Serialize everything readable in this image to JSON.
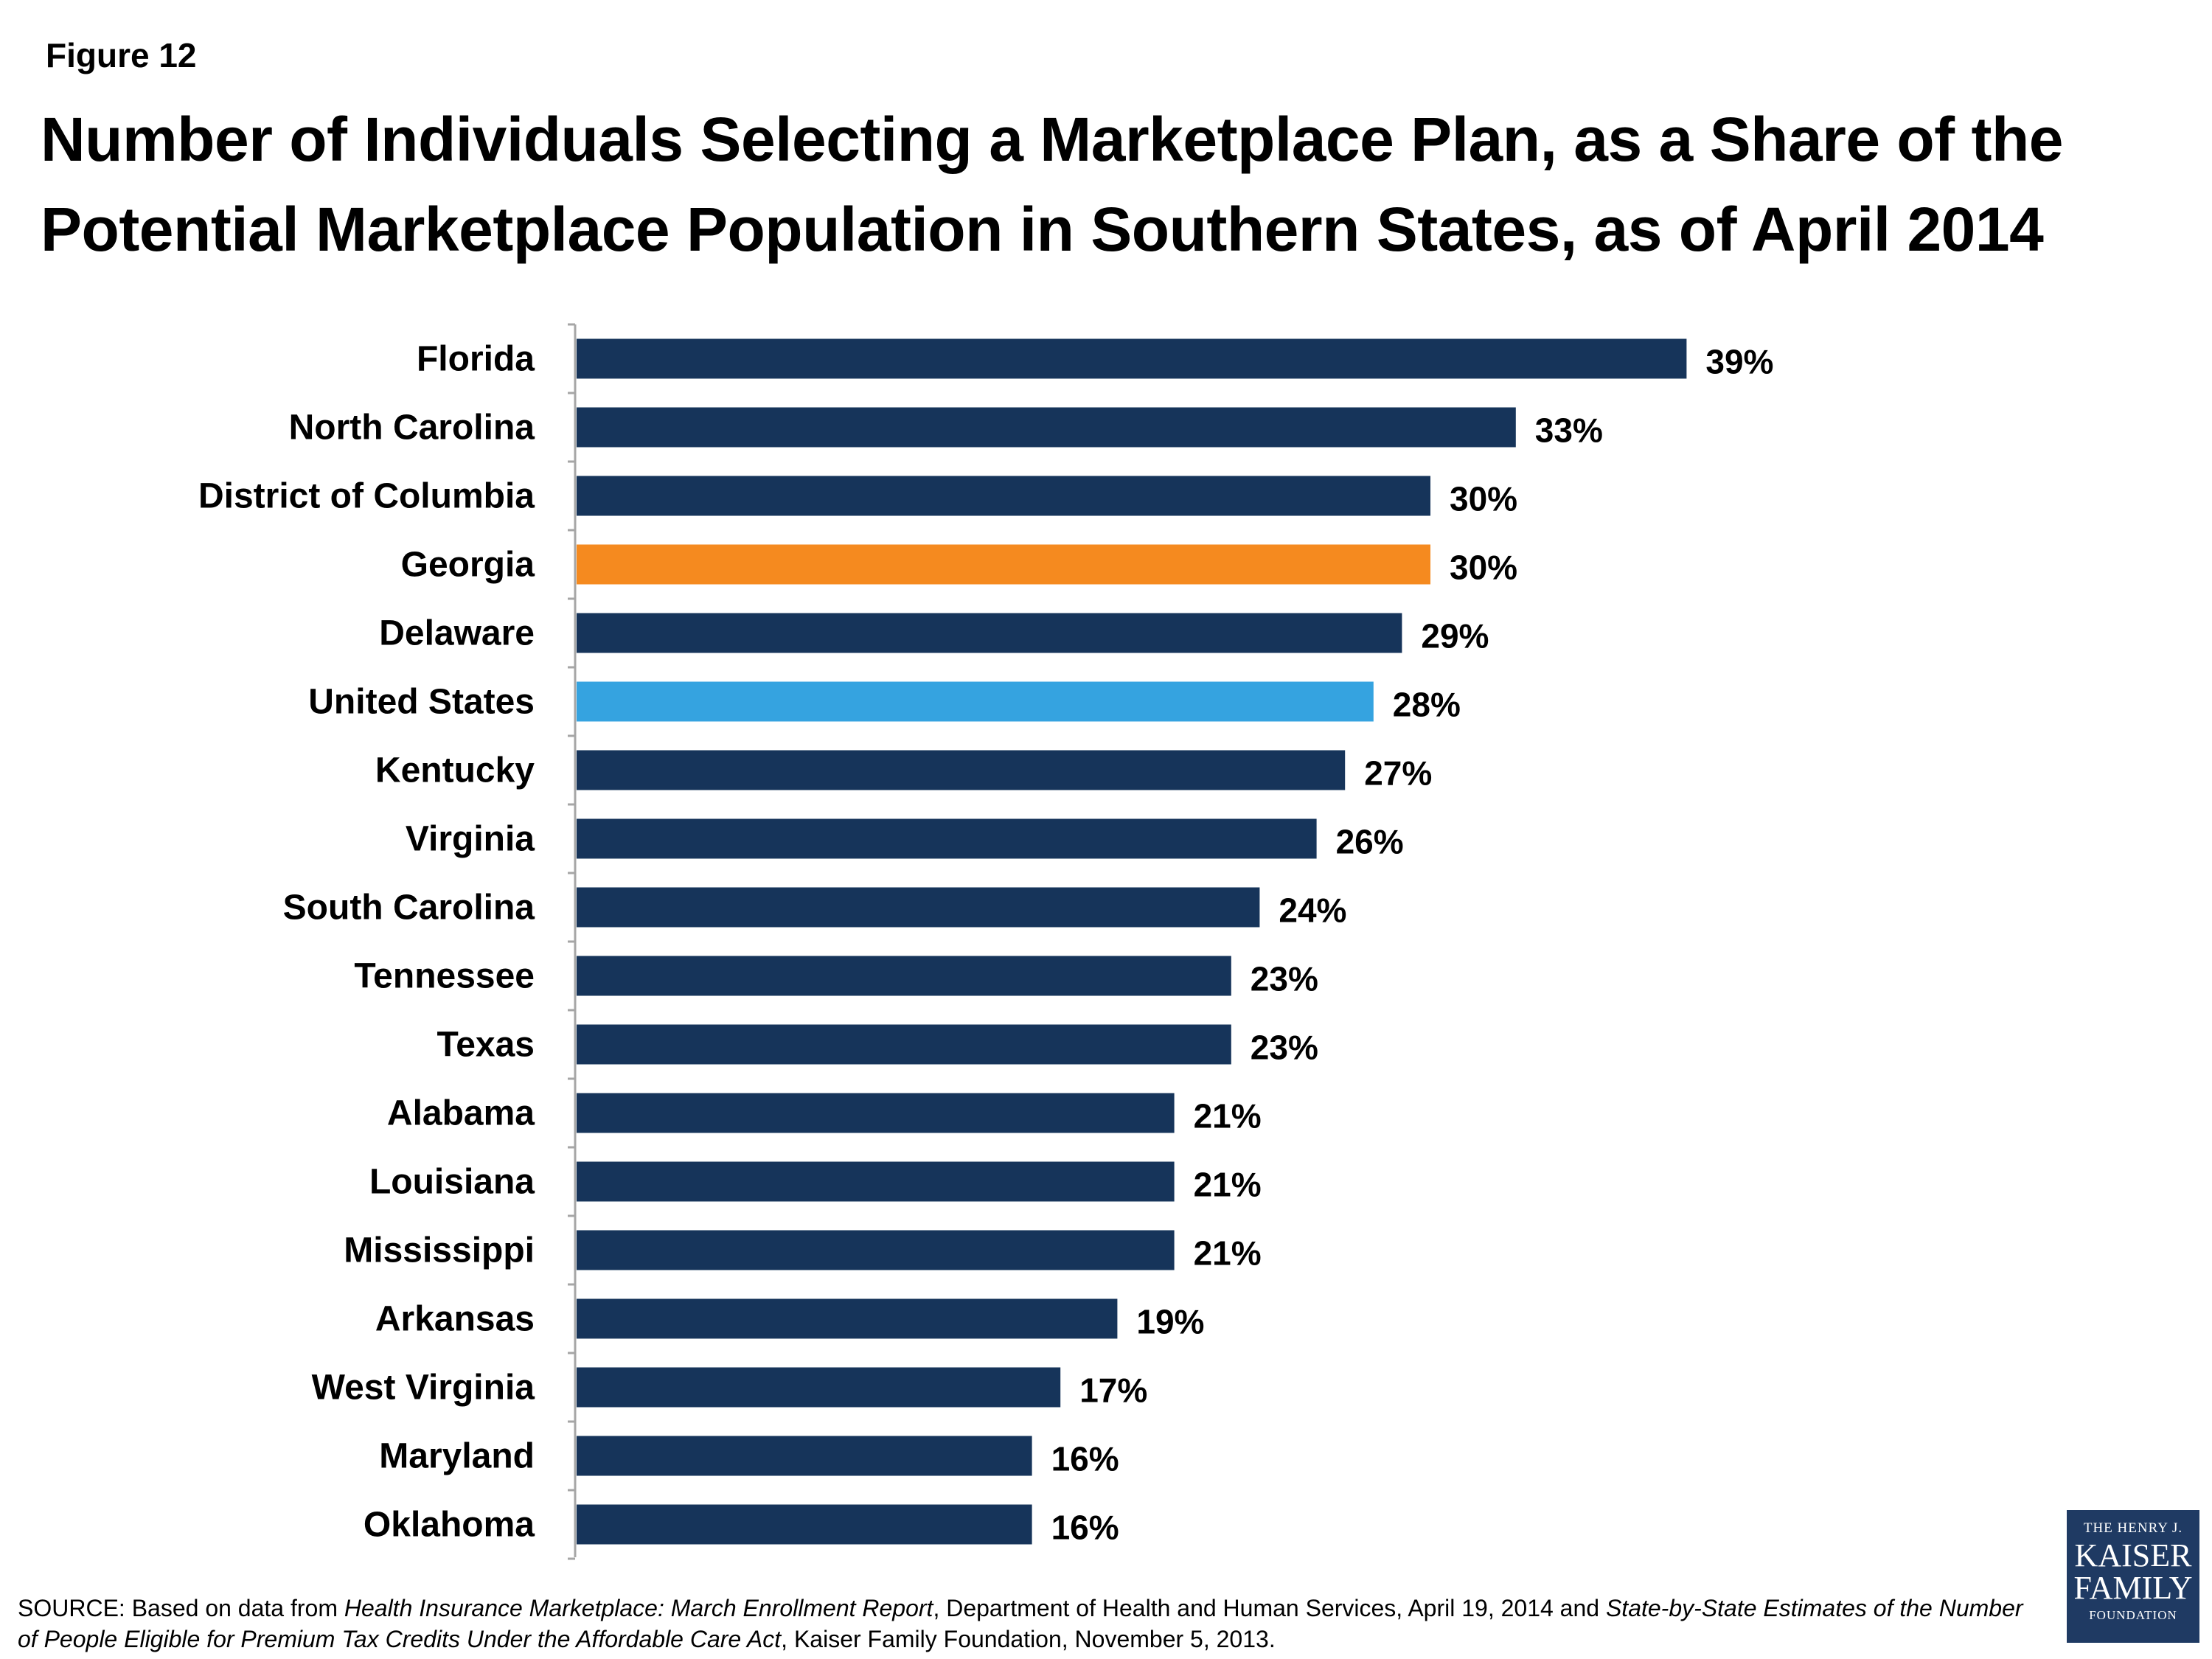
{
  "figure_label": "Figure 12",
  "title": "Number of Individuals Selecting a Marketplace Plan, as a Share of the Potential Marketplace Population in Southern States, as of April 2014",
  "source": {
    "prefix": "SOURCE: Based on data from ",
    "title1": "Health Insurance Marketplace: March Enrollment Report",
    "middle": ", Department of Health and Human Services, April 19, 2014 and ",
    "title2": "State-by-State Estimates of the Number of People Eligible for Premium Tax Credits Under the Affordable Care Act",
    "suffix": ", Kaiser Family Foundation, November 5, 2013."
  },
  "logo": {
    "line1": "THE HENRY J.",
    "line2": "KAISER",
    "line3": "FAMILY",
    "line4": "FOUNDATION"
  },
  "colors": {
    "default_bar": "#16345a",
    "highlight_georgia": "#f58a1f",
    "highlight_us": "#35a3e0",
    "axis": "#a6a6a6"
  },
  "chart_data": {
    "type": "bar",
    "orientation": "horizontal",
    "value_format": "percent",
    "categories": [
      "Florida",
      "North Carolina",
      "District of Columbia",
      "Georgia",
      "Delaware",
      "United States",
      "Kentucky",
      "Virginia",
      "South Carolina",
      "Tennessee",
      "Texas",
      "Alabama",
      "Louisiana",
      "Mississippi",
      "Arkansas",
      "West Virginia",
      "Maryland",
      "Oklahoma"
    ],
    "values": [
      39,
      33,
      30,
      30,
      29,
      28,
      27,
      26,
      24,
      23,
      23,
      21,
      21,
      21,
      19,
      17,
      16,
      16
    ],
    "value_labels": [
      "39%",
      "33%",
      "30%",
      "30%",
      "29%",
      "28%",
      "27%",
      "26%",
      "24%",
      "23%",
      "23%",
      "21%",
      "21%",
      "21%",
      "19%",
      "17%",
      "16%",
      "16%"
    ],
    "bar_colors": [
      "#16345a",
      "#16345a",
      "#16345a",
      "#f58a1f",
      "#16345a",
      "#35a3e0",
      "#16345a",
      "#16345a",
      "#16345a",
      "#16345a",
      "#16345a",
      "#16345a",
      "#16345a",
      "#16345a",
      "#16345a",
      "#16345a",
      "#16345a",
      "#16345a"
    ],
    "xlim": [
      0,
      45
    ],
    "grid": false,
    "legend": "none"
  }
}
